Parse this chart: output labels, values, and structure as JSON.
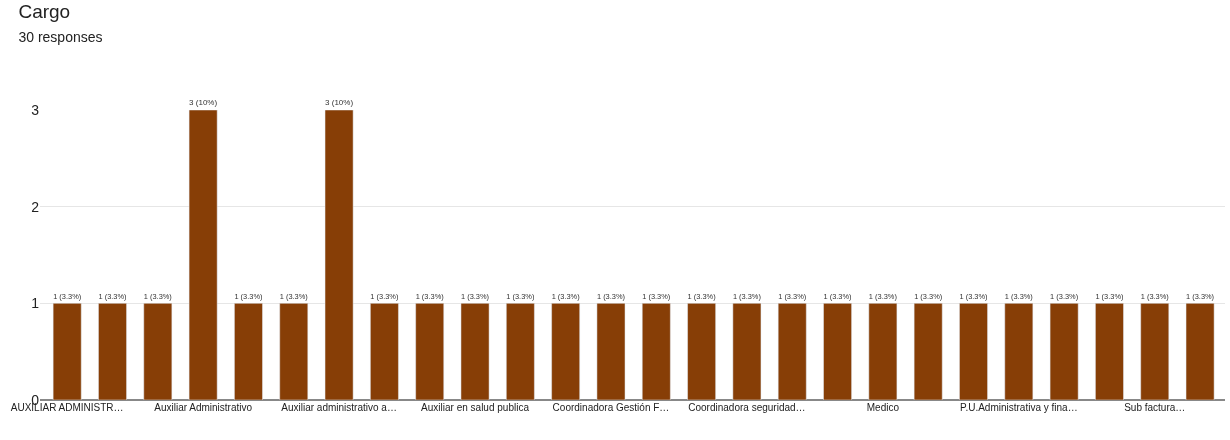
{
  "chart_data": {
    "type": "bar",
    "title": "Cargo",
    "subtitle": "30 responses",
    "categories": [
      "AUXILIAR ADMINISTR…",
      null,
      null,
      "Auxiliar Administrativo",
      null,
      null,
      "Auxiliar administrativo a…",
      null,
      null,
      "Auxiliar en salud publica",
      null,
      null,
      "Coordinadora Gestión F…",
      null,
      null,
      "Coordinadora seguridad…",
      null,
      null,
      "Medico",
      null,
      null,
      "P.U.Administrativa y fina…",
      null,
      null,
      "Sub factura…",
      null
    ],
    "values": [
      1,
      1,
      1,
      3,
      1,
      1,
      3,
      1,
      1,
      1,
      1,
      1,
      1,
      1,
      1,
      1,
      1,
      1,
      1,
      1,
      1,
      1,
      1,
      1,
      1,
      1
    ],
    "value_labels": [
      "1 (3.3%)",
      "1 (3.3%)",
      "1 (3.3%)",
      "3 (10%)",
      "1 (3.3%)",
      "1 (3.3%)",
      "3 (10%)",
      "1 (3.3%)",
      "1 (3.3%)",
      "1 (3.3%)",
      "1 (3.3%)",
      "1 (3.3%)",
      "1 (3.3%)",
      "1 (3.3%)",
      "1 (3.3%)",
      "1 (3.3%)",
      "1 (3.3%)",
      "1 (3.3%)",
      "1 (3.3%)",
      "1 (3.3%)",
      "1 (3.3%)",
      "1 (3.3%)",
      "1 (3.3%)",
      "1 (3.3%)",
      "1 (3.3%)",
      "1 (3.3%)"
    ],
    "color": "#873e06",
    "ylim": [
      0,
      3
    ],
    "yticks": [
      0,
      1,
      2,
      3
    ],
    "grid": "y"
  }
}
